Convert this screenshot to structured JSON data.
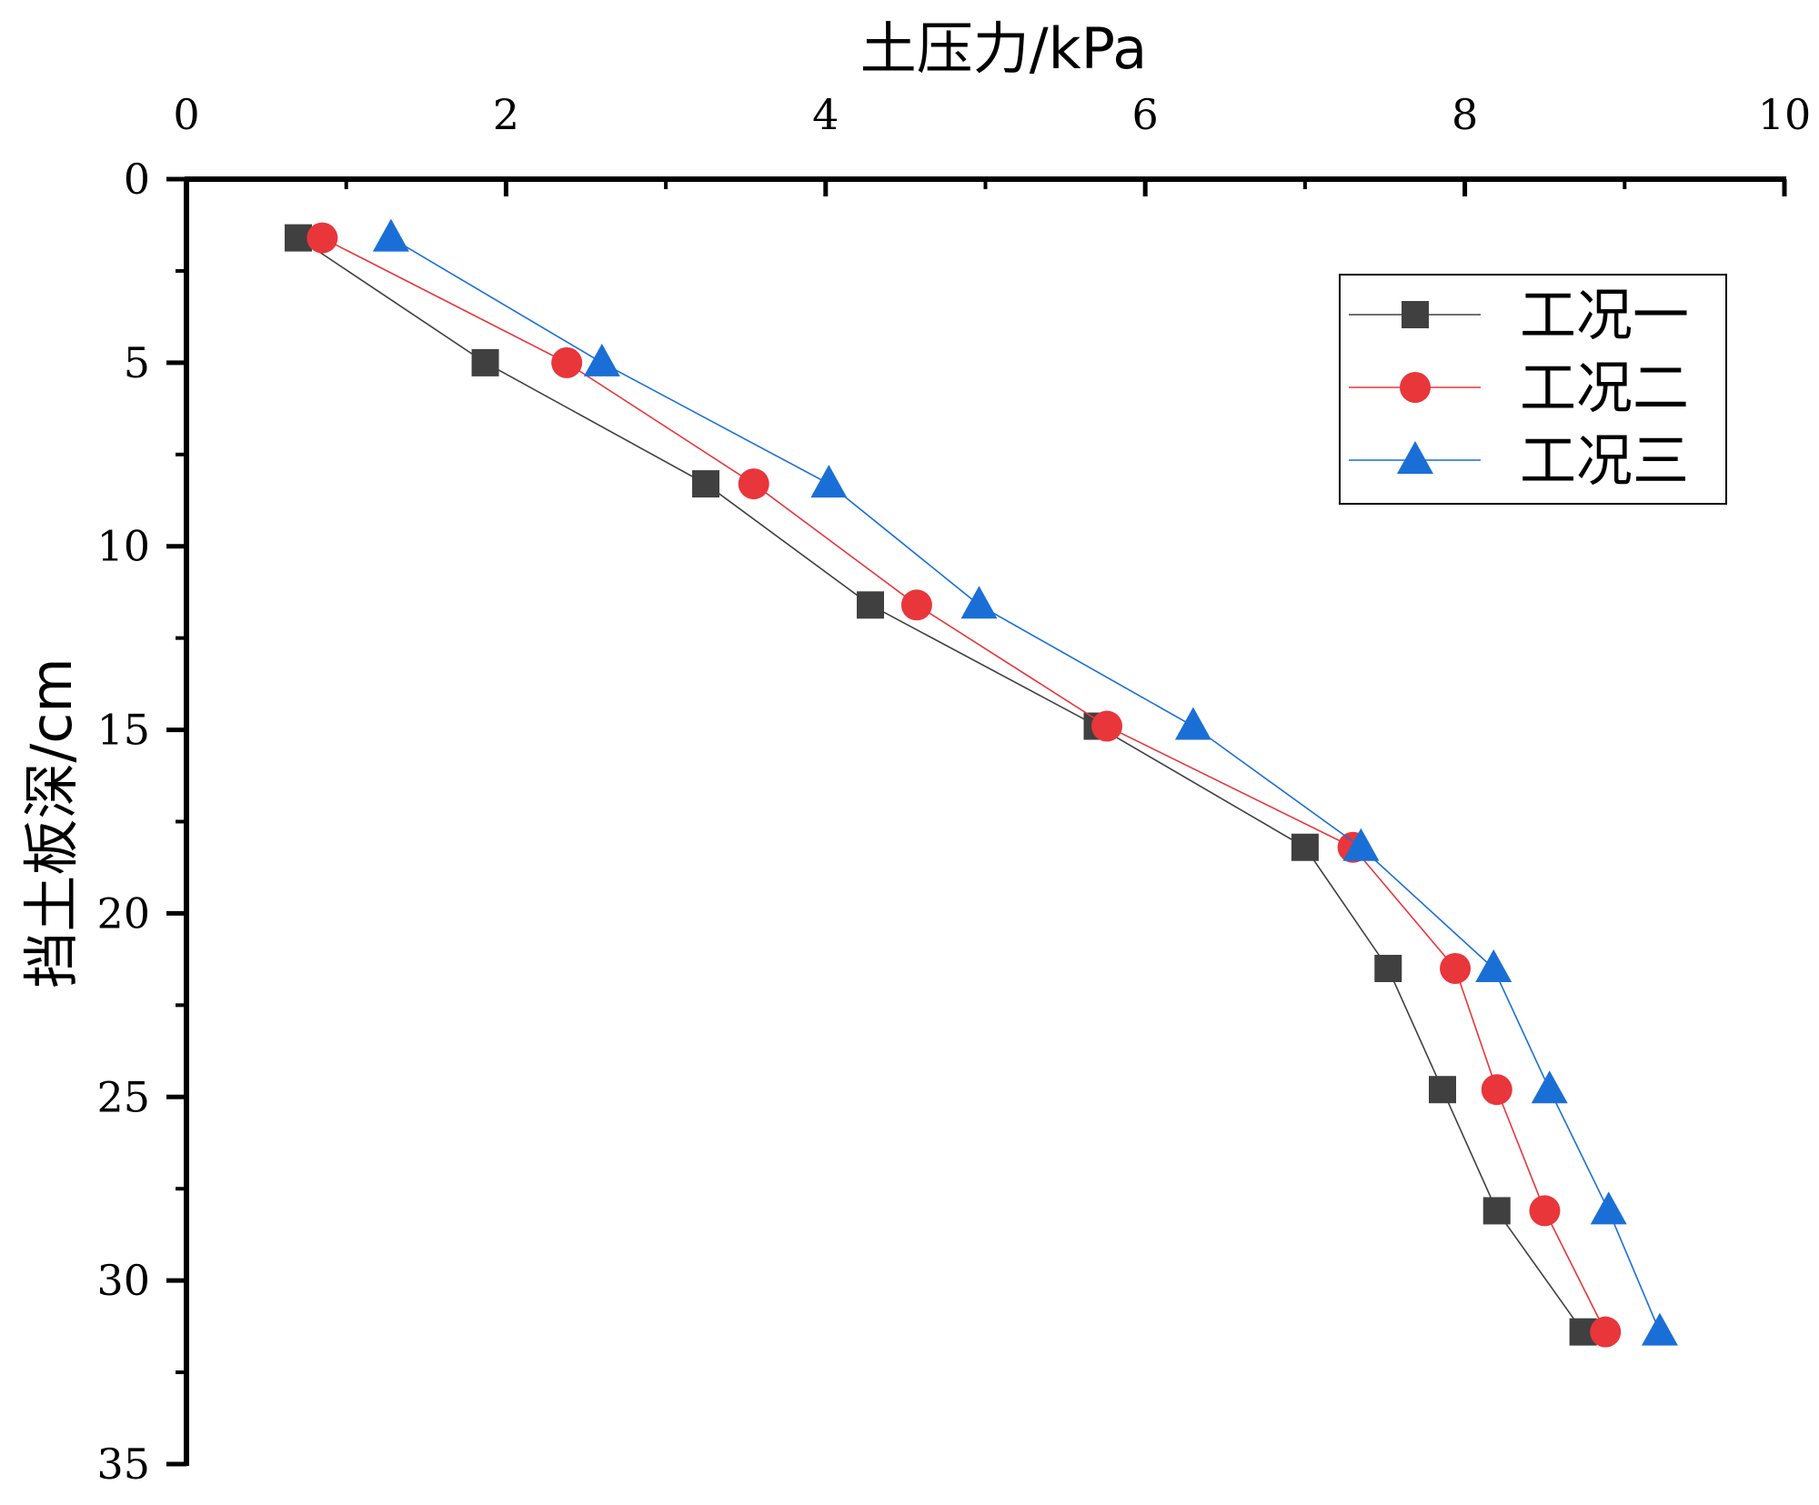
{
  "chart_data": {
    "type": "line",
    "xlabel": "土压力/kPa",
    "ylabel": "挡土板深/cm",
    "xlim": [
      0,
      10
    ],
    "ylim": [
      0,
      35
    ],
    "x_ticks": [
      "0",
      "2",
      "4",
      "6",
      "8",
      "10"
    ],
    "y_ticks": [
      "0",
      "5",
      "10",
      "15",
      "20",
      "25",
      "30",
      "35"
    ],
    "x_axis_position": "top",
    "y_axis_inverted": true,
    "grid": false,
    "legend_position": "top-right",
    "series": [
      {
        "name": "工况一",
        "color": "#404040",
        "marker": "square",
        "points": [
          {
            "x": 0.7,
            "y": 1.6
          },
          {
            "x": 1.87,
            "y": 5.0
          },
          {
            "x": 3.25,
            "y": 8.3
          },
          {
            "x": 4.28,
            "y": 11.6
          },
          {
            "x": 5.7,
            "y": 14.9
          },
          {
            "x": 7.0,
            "y": 18.2
          },
          {
            "x": 7.52,
            "y": 21.5
          },
          {
            "x": 7.86,
            "y": 24.8
          },
          {
            "x": 8.2,
            "y": 28.1
          },
          {
            "x": 8.74,
            "y": 31.4
          }
        ]
      },
      {
        "name": "工况二",
        "color": "#e8363b",
        "marker": "circle",
        "points": [
          {
            "x": 0.85,
            "y": 1.6
          },
          {
            "x": 2.38,
            "y": 5.0
          },
          {
            "x": 3.55,
            "y": 8.3
          },
          {
            "x": 4.57,
            "y": 11.6
          },
          {
            "x": 5.76,
            "y": 14.9
          },
          {
            "x": 7.3,
            "y": 18.2
          },
          {
            "x": 7.94,
            "y": 21.5
          },
          {
            "x": 8.2,
            "y": 24.8
          },
          {
            "x": 8.5,
            "y": 28.1
          },
          {
            "x": 8.88,
            "y": 31.4
          }
        ]
      },
      {
        "name": "工况三",
        "color": "#1a6fd6",
        "marker": "triangle",
        "points": [
          {
            "x": 1.28,
            "y": 1.6
          },
          {
            "x": 2.6,
            "y": 5.0
          },
          {
            "x": 4.02,
            "y": 8.3
          },
          {
            "x": 4.96,
            "y": 11.6
          },
          {
            "x": 6.3,
            "y": 14.9
          },
          {
            "x": 7.35,
            "y": 18.2
          },
          {
            "x": 8.18,
            "y": 21.5
          },
          {
            "x": 8.53,
            "y": 24.8
          },
          {
            "x": 8.9,
            "y": 28.1
          },
          {
            "x": 9.22,
            "y": 31.4
          }
        ]
      }
    ]
  }
}
